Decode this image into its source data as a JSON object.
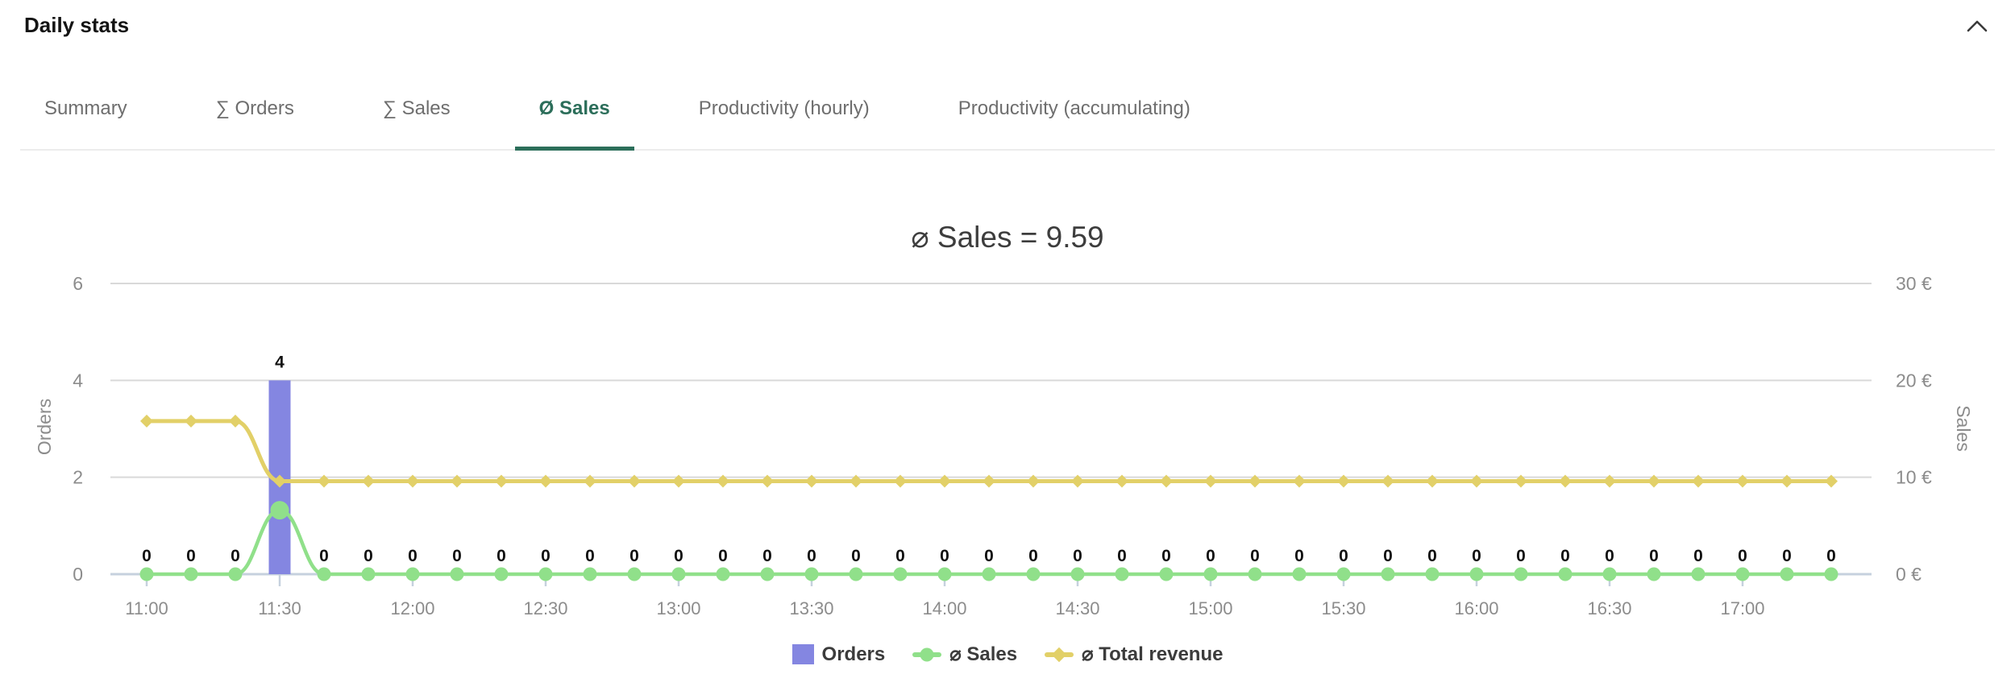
{
  "header": {
    "title": "Daily stats"
  },
  "tabs": [
    {
      "id": "summary",
      "label": "Summary",
      "active": false
    },
    {
      "id": "sum-orders",
      "label": "∑ Orders",
      "active": false
    },
    {
      "id": "sum-sales",
      "label": "∑ Sales",
      "active": false
    },
    {
      "id": "avg-sales",
      "label": "Ø Sales",
      "active": true
    },
    {
      "id": "productivity-hourly",
      "label": "Productivity (hourly)",
      "active": false
    },
    {
      "id": "productivity-accumulating",
      "label": "Productivity (accumulating)",
      "active": false
    }
  ],
  "colors": {
    "active_tab": "#2c6e5a",
    "tab_text": "#6e6e6e",
    "bar": "#8486e1",
    "sales_line": "#90e08a",
    "revenue_line": "#e2d068",
    "axis_line": "#c6d1de",
    "grid_line": "#d9d9d9",
    "tick_text": "#8c8c8c",
    "data_label": "#111111",
    "legend_text": "#3c3c3c",
    "title_text": "#3d3d3d"
  },
  "chart_data": {
    "type": "mixed",
    "title": "⌀ Sales = 9.59",
    "legend_position": "bottom",
    "grid": true,
    "x": [
      "11:00",
      "11:10",
      "11:20",
      "11:30",
      "11:40",
      "11:50",
      "12:00",
      "12:10",
      "12:20",
      "12:30",
      "12:40",
      "12:50",
      "13:00",
      "13:10",
      "13:20",
      "13:30",
      "13:40",
      "13:50",
      "14:00",
      "14:10",
      "14:20",
      "14:30",
      "14:40",
      "14:50",
      "15:00",
      "15:10",
      "15:20",
      "15:30",
      "15:40",
      "15:50",
      "16:00",
      "16:10",
      "16:20",
      "16:30",
      "16:40",
      "16:50",
      "17:00",
      "17:10",
      "17:20"
    ],
    "x_ticks": [
      {
        "index": 0,
        "label": "11:00"
      },
      {
        "index": 3,
        "label": "11:30"
      },
      {
        "index": 6,
        "label": "12:00"
      },
      {
        "index": 9,
        "label": "12:30"
      },
      {
        "index": 12,
        "label": "13:00"
      },
      {
        "index": 15,
        "label": "13:30"
      },
      {
        "index": 18,
        "label": "14:00"
      },
      {
        "index": 21,
        "label": "14:30"
      },
      {
        "index": 24,
        "label": "15:00"
      },
      {
        "index": 27,
        "label": "15:30"
      },
      {
        "index": 30,
        "label": "16:00"
      },
      {
        "index": 33,
        "label": "16:30"
      },
      {
        "index": 36,
        "label": "17:00"
      }
    ],
    "left_axis": {
      "label": "Orders",
      "max": 6,
      "ticks": [
        {
          "value": 0,
          "label": "0"
        },
        {
          "value": 2,
          "label": "2"
        },
        {
          "value": 4,
          "label": "4"
        },
        {
          "value": 6,
          "label": "6"
        }
      ]
    },
    "right_axis": {
      "label": "Sales",
      "max": 30,
      "ticks": [
        {
          "value": 0,
          "label": "0 €"
        },
        {
          "value": 10,
          "label": "10 €"
        },
        {
          "value": 20,
          "label": "20 €"
        },
        {
          "value": 30,
          "label": "30 €"
        }
      ]
    },
    "series": [
      {
        "id": "orders",
        "name": "Orders",
        "type": "bar",
        "axis": "left",
        "color": "#8486e1",
        "show_value_labels": true,
        "values": [
          0,
          0,
          0,
          4,
          0,
          0,
          0,
          0,
          0,
          0,
          0,
          0,
          0,
          0,
          0,
          0,
          0,
          0,
          0,
          0,
          0,
          0,
          0,
          0,
          0,
          0,
          0,
          0,
          0,
          0,
          0,
          0,
          0,
          0,
          0,
          0,
          0,
          0,
          0
        ]
      },
      {
        "id": "avg-sales",
        "name": "⌀ Sales",
        "type": "line",
        "axis": "right",
        "color": "#90e08a",
        "marker": "circle",
        "values": [
          0,
          0,
          0,
          6.6,
          0,
          0,
          0,
          0,
          0,
          0,
          0,
          0,
          0,
          0,
          0,
          0,
          0,
          0,
          0,
          0,
          0,
          0,
          0,
          0,
          0,
          0,
          0,
          0,
          0,
          0,
          0,
          0,
          0,
          0,
          0,
          0,
          0,
          0,
          0
        ]
      },
      {
        "id": "avg-total-revenue",
        "name": "⌀ Total revenue",
        "type": "line",
        "axis": "right",
        "color": "#e2d068",
        "marker": "diamond",
        "values": [
          15.8,
          15.8,
          15.8,
          9.6,
          9.6,
          9.6,
          9.6,
          9.6,
          9.6,
          9.6,
          9.6,
          9.6,
          9.6,
          9.6,
          9.6,
          9.6,
          9.6,
          9.6,
          9.6,
          9.6,
          9.6,
          9.6,
          9.6,
          9.6,
          9.6,
          9.6,
          9.6,
          9.6,
          9.6,
          9.6,
          9.6,
          9.6,
          9.6,
          9.6,
          9.6,
          9.6,
          9.6,
          9.6,
          9.6
        ]
      }
    ]
  }
}
